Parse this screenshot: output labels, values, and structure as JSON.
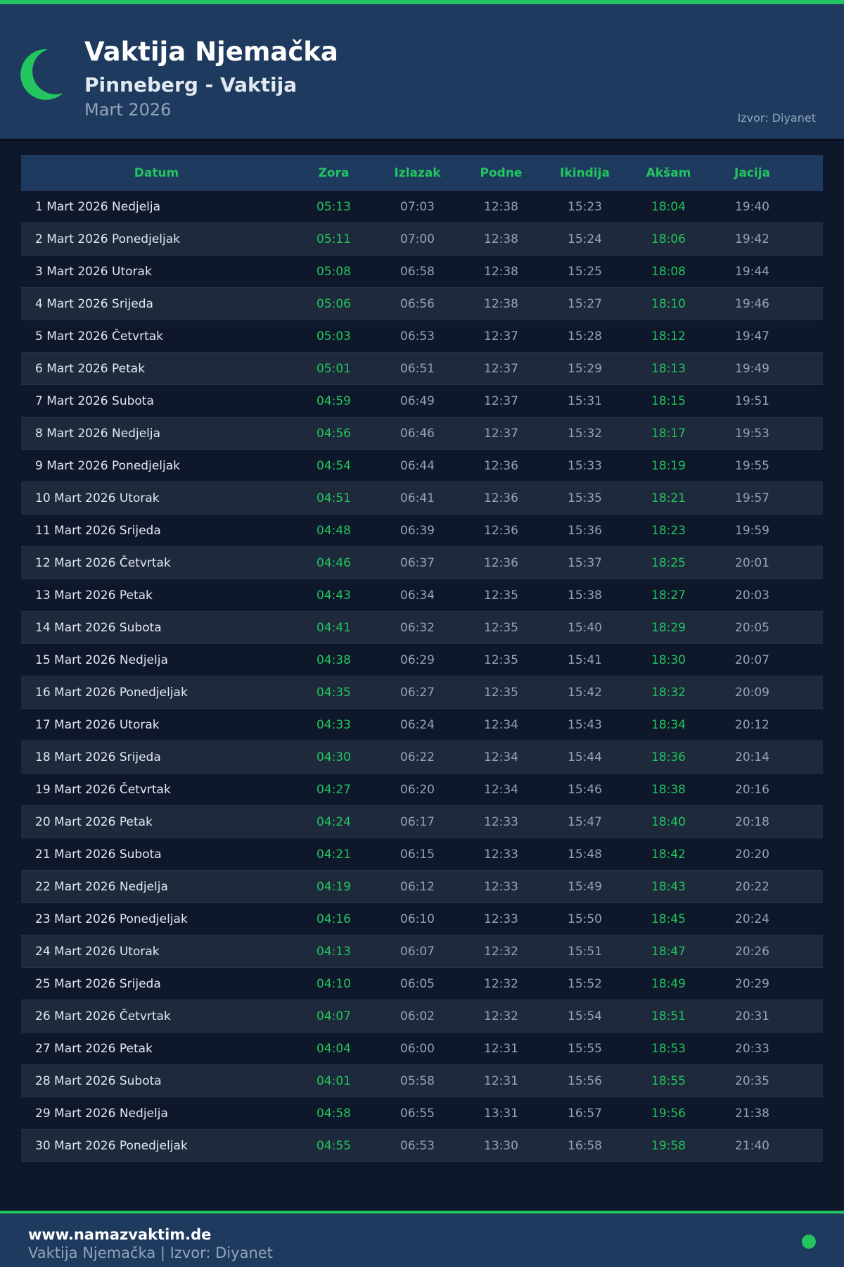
{
  "header": {
    "title": "Vaktija Njemačka",
    "subtitle": "Pinneberg - Vaktija",
    "month": "Mart 2026",
    "source": "Izvor: Diyanet",
    "icon": "crescent-moon-icon"
  },
  "colors": {
    "accent": "#22c55e",
    "header_bg": "#1e3a5f",
    "page_bg": "#0f172a"
  },
  "table": {
    "columns": [
      "Datum",
      "Zora",
      "Izlazak",
      "Podne",
      "Ikindija",
      "Akšam",
      "Jacija"
    ],
    "rows": [
      [
        "1 Mart 2026 Nedjelja",
        "05:13",
        "07:03",
        "12:38",
        "15:23",
        "18:04",
        "19:40"
      ],
      [
        "2 Mart 2026 Ponedjeljak",
        "05:11",
        "07:00",
        "12:38",
        "15:24",
        "18:06",
        "19:42"
      ],
      [
        "3 Mart 2026 Utorak",
        "05:08",
        "06:58",
        "12:38",
        "15:25",
        "18:08",
        "19:44"
      ],
      [
        "4 Mart 2026 Srijeda",
        "05:06",
        "06:56",
        "12:38",
        "15:27",
        "18:10",
        "19:46"
      ],
      [
        "5 Mart 2026 Četvrtak",
        "05:03",
        "06:53",
        "12:37",
        "15:28",
        "18:12",
        "19:47"
      ],
      [
        "6 Mart 2026 Petak",
        "05:01",
        "06:51",
        "12:37",
        "15:29",
        "18:13",
        "19:49"
      ],
      [
        "7 Mart 2026 Subota",
        "04:59",
        "06:49",
        "12:37",
        "15:31",
        "18:15",
        "19:51"
      ],
      [
        "8 Mart 2026 Nedjelja",
        "04:56",
        "06:46",
        "12:37",
        "15:32",
        "18:17",
        "19:53"
      ],
      [
        "9 Mart 2026 Ponedjeljak",
        "04:54",
        "06:44",
        "12:36",
        "15:33",
        "18:19",
        "19:55"
      ],
      [
        "10 Mart 2026 Utorak",
        "04:51",
        "06:41",
        "12:36",
        "15:35",
        "18:21",
        "19:57"
      ],
      [
        "11 Mart 2026 Srijeda",
        "04:48",
        "06:39",
        "12:36",
        "15:36",
        "18:23",
        "19:59"
      ],
      [
        "12 Mart 2026 Četvrtak",
        "04:46",
        "06:37",
        "12:36",
        "15:37",
        "18:25",
        "20:01"
      ],
      [
        "13 Mart 2026 Petak",
        "04:43",
        "06:34",
        "12:35",
        "15:38",
        "18:27",
        "20:03"
      ],
      [
        "14 Mart 2026 Subota",
        "04:41",
        "06:32",
        "12:35",
        "15:40",
        "18:29",
        "20:05"
      ],
      [
        "15 Mart 2026 Nedjelja",
        "04:38",
        "06:29",
        "12:35",
        "15:41",
        "18:30",
        "20:07"
      ],
      [
        "16 Mart 2026 Ponedjeljak",
        "04:35",
        "06:27",
        "12:35",
        "15:42",
        "18:32",
        "20:09"
      ],
      [
        "17 Mart 2026 Utorak",
        "04:33",
        "06:24",
        "12:34",
        "15:43",
        "18:34",
        "20:12"
      ],
      [
        "18 Mart 2026 Srijeda",
        "04:30",
        "06:22",
        "12:34",
        "15:44",
        "18:36",
        "20:14"
      ],
      [
        "19 Mart 2026 Četvrtak",
        "04:27",
        "06:20",
        "12:34",
        "15:46",
        "18:38",
        "20:16"
      ],
      [
        "20 Mart 2026 Petak",
        "04:24",
        "06:17",
        "12:33",
        "15:47",
        "18:40",
        "20:18"
      ],
      [
        "21 Mart 2026 Subota",
        "04:21",
        "06:15",
        "12:33",
        "15:48",
        "18:42",
        "20:20"
      ],
      [
        "22 Mart 2026 Nedjelja",
        "04:19",
        "06:12",
        "12:33",
        "15:49",
        "18:43",
        "20:22"
      ],
      [
        "23 Mart 2026 Ponedjeljak",
        "04:16",
        "06:10",
        "12:33",
        "15:50",
        "18:45",
        "20:24"
      ],
      [
        "24 Mart 2026 Utorak",
        "04:13",
        "06:07",
        "12:32",
        "15:51",
        "18:47",
        "20:26"
      ],
      [
        "25 Mart 2026 Srijeda",
        "04:10",
        "06:05",
        "12:32",
        "15:52",
        "18:49",
        "20:29"
      ],
      [
        "26 Mart 2026 Četvrtak",
        "04:07",
        "06:02",
        "12:32",
        "15:54",
        "18:51",
        "20:31"
      ],
      [
        "27 Mart 2026 Petak",
        "04:04",
        "06:00",
        "12:31",
        "15:55",
        "18:53",
        "20:33"
      ],
      [
        "28 Mart 2026 Subota",
        "04:01",
        "05:58",
        "12:31",
        "15:56",
        "18:55",
        "20:35"
      ],
      [
        "29 Mart 2026 Nedjelja",
        "04:58",
        "06:55",
        "13:31",
        "16:57",
        "19:56",
        "21:38"
      ],
      [
        "30 Mart 2026 Ponedjeljak",
        "04:55",
        "06:53",
        "13:30",
        "16:58",
        "19:58",
        "21:40"
      ]
    ]
  },
  "footer": {
    "site": "www.namazvaktim.de",
    "subtitle": "Vaktija Njemačka | Izvor: Diyanet"
  }
}
